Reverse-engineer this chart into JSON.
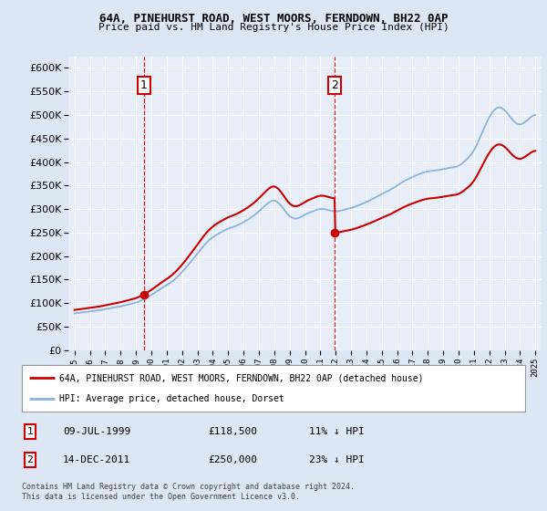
{
  "title1": "64A, PINEHURST ROAD, WEST MOORS, FERNDOWN, BH22 0AP",
  "title2": "Price paid vs. HM Land Registry's House Price Index (HPI)",
  "bg_color": "#dce6f5",
  "plot_bg": "#e8eef8",
  "grid_color": "#ffffff",
  "red_color": "#cc0000",
  "blue_color": "#8ab4d8",
  "legend_line1": "64A, PINEHURST ROAD, WEST MOORS, FERNDOWN, BH22 0AP (detached house)",
  "legend_line2": "HPI: Average price, detached house, Dorset",
  "table_row1": [
    "1",
    "09-JUL-1999",
    "£118,500",
    "11% ↓ HPI"
  ],
  "table_row2": [
    "2",
    "14-DEC-2011",
    "£250,000",
    "23% ↓ HPI"
  ],
  "footer": "Contains HM Land Registry data © Crown copyright and database right 2024.\nThis data is licensed under the Open Government Licence v3.0.",
  "ylim": [
    0,
    625000
  ],
  "yticks": [
    0,
    50000,
    100000,
    150000,
    200000,
    250000,
    300000,
    350000,
    400000,
    450000,
    500000,
    550000,
    600000
  ],
  "xmin": 1994.6,
  "xmax": 2025.4,
  "sale1_date_num": 1999.52,
  "sale1_price": 118500,
  "sale2_date_num": 2011.95,
  "sale2_price": 250000
}
